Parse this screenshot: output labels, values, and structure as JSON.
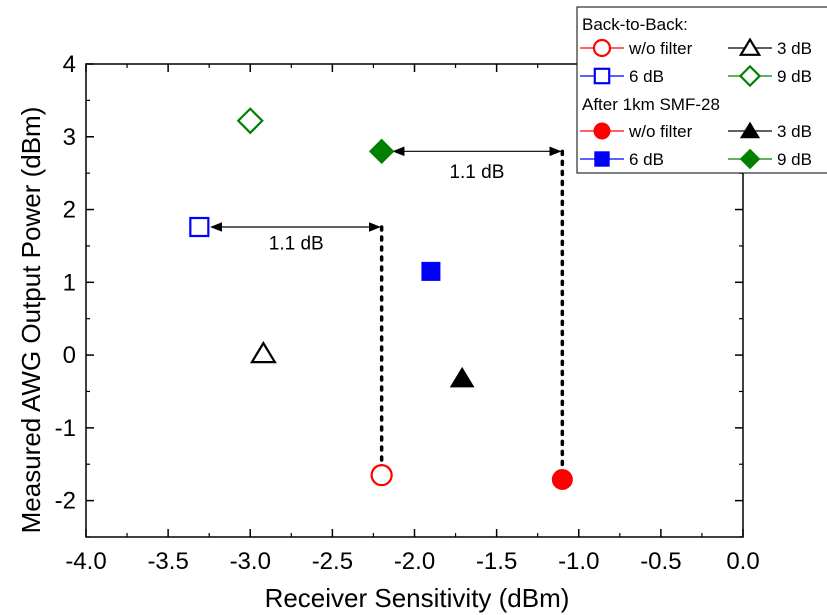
{
  "chart_data": {
    "type": "scatter",
    "title": "",
    "xlabel": "Receiver Sensitivity (dBm)",
    "ylabel": "Measured AWG Output Power (dBm)",
    "xlim": [
      -4.0,
      0.0
    ],
    "ylim": [
      -2.5,
      4.0
    ],
    "xticks": [
      -4.0,
      -3.5,
      -3.0,
      -2.5,
      -2.0,
      -1.5,
      -1.0,
      -0.5,
      0.0
    ],
    "xtick_labels": [
      "-4.0",
      "-3.5",
      "-3.0",
      "-2.5",
      "-2.0",
      "-1.5",
      "-1.0",
      "-0.5",
      "0.0"
    ],
    "yticks": [
      -2,
      -1,
      0,
      1,
      2,
      3,
      4
    ],
    "ytick_labels": [
      "-2",
      "-1",
      "0",
      "1",
      "2",
      "3",
      "4"
    ],
    "grid": false,
    "legend_position": "top-right",
    "legend_groups": [
      "Back-to-Back:",
      "After 1km SMF-28"
    ],
    "series": [
      {
        "name": "w/o filter",
        "group": "Back-to-Back:",
        "marker": "circle",
        "filled": false,
        "color": "#ff0000",
        "x": [
          -2.2
        ],
        "y": [
          -1.65
        ]
      },
      {
        "name": "3 dB",
        "group": "Back-to-Back:",
        "marker": "triangle",
        "filled": false,
        "color": "#000000",
        "x": [
          -2.92
        ],
        "y": [
          0.02
        ]
      },
      {
        "name": "6 dB",
        "group": "Back-to-Back:",
        "marker": "square",
        "filled": false,
        "color": "#0000ff",
        "x": [
          -3.31
        ],
        "y": [
          1.76
        ]
      },
      {
        "name": "9 dB",
        "group": "Back-to-Back:",
        "marker": "diamond",
        "filled": false,
        "color": "#008000",
        "x": [
          -3.0
        ],
        "y": [
          3.22
        ]
      },
      {
        "name": "w/o filter",
        "group": "After 1km SMF-28",
        "marker": "circle",
        "filled": true,
        "color": "#ff0000",
        "x": [
          -1.1
        ],
        "y": [
          -1.71
        ]
      },
      {
        "name": "3 dB",
        "group": "After 1km SMF-28",
        "marker": "triangle",
        "filled": true,
        "color": "#000000",
        "x": [
          -1.71
        ],
        "y": [
          -0.32
        ]
      },
      {
        "name": "6 dB",
        "group": "After 1km SMF-28",
        "marker": "square",
        "filled": true,
        "color": "#0000ff",
        "x": [
          -1.9
        ],
        "y": [
          1.15
        ]
      },
      {
        "name": "9 dB",
        "group": "After 1km SMF-28",
        "marker": "diamond",
        "filled": true,
        "color": "#008000",
        "x": [
          -2.2
        ],
        "y": [
          2.8
        ]
      }
    ],
    "annotations": [
      {
        "text": "1.1 dB",
        "arrow_from": [
          -3.31,
          1.76
        ],
        "arrow_to": [
          -2.2,
          1.76
        ],
        "label_at": [
          -2.72,
          1.45
        ],
        "drop_x": -2.2,
        "drop_to_y": -1.65
      },
      {
        "text": "1.1 dB",
        "arrow_from": [
          -2.2,
          2.8
        ],
        "arrow_to": [
          -1.1,
          2.8
        ],
        "label_at": [
          -1.62,
          2.43
        ],
        "drop_x": -1.1,
        "drop_to_y": -1.71
      }
    ]
  }
}
